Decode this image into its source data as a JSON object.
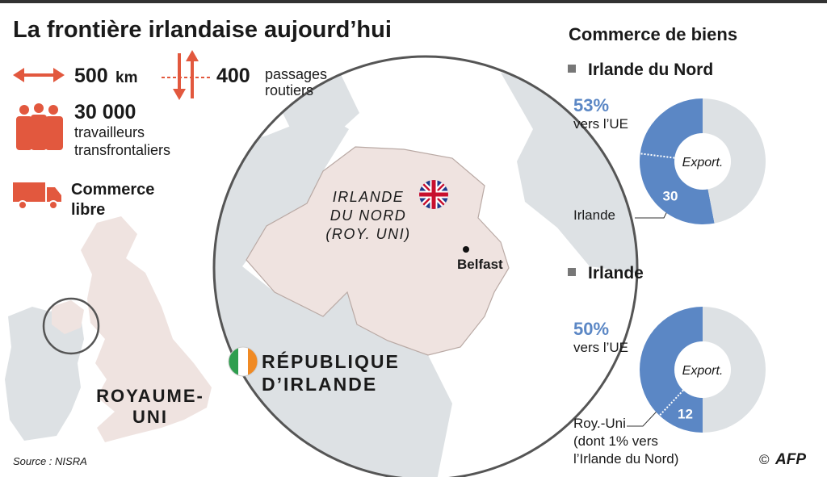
{
  "header": {
    "title": "La frontière irlandaise aujourd’hui"
  },
  "stats": {
    "border": {
      "value": "500",
      "unit": "km"
    },
    "crossings": {
      "value": "400",
      "label_lines": [
        "passages",
        "routiers"
      ]
    },
    "workers": {
      "value": "30 000",
      "label_lines": [
        "travailleurs",
        "transfrontaliers"
      ]
    },
    "trade": {
      "label_lines": [
        "Commerce",
        "libre"
      ]
    }
  },
  "map": {
    "northern_ireland": [
      "IRLANDE",
      "DU NORD",
      "(ROY. UNI)"
    ],
    "belfast": "Belfast",
    "republic": [
      "RÉPUBLIQUE",
      "D’IRLANDE"
    ],
    "uk": [
      "ROYAUME-",
      "UNI"
    ]
  },
  "panel_title": "Commerce de biens",
  "chart_data": [
    {
      "type": "pie",
      "title": "Irlande du Nord",
      "center_label": "Export.",
      "categories": [
        "vers l’UE",
        null
      ],
      "values": [
        53,
        47
      ],
      "value_labels": [
        "53%",
        null
      ],
      "colors": [
        "#5b87c5",
        "#dde1e4"
      ],
      "split": {
        "value": 30,
        "label_lines": [
          "Irlande"
        ]
      }
    },
    {
      "type": "pie",
      "title": "Irlande",
      "center_label": "Export.",
      "categories": [
        "vers l’UE",
        null
      ],
      "values": [
        50,
        50
      ],
      "value_labels": [
        "50%",
        null
      ],
      "colors": [
        "#5b87c5",
        "#dde1e4"
      ],
      "split": {
        "value": 12,
        "label_lines": [
          "Roy.-Uni",
          "(dont 1% vers",
          "l’Irlande du Nord)"
        ]
      }
    }
  ],
  "footer": {
    "source": "Source : NISRA",
    "credit_symbol": "©",
    "credit": "AFP"
  }
}
